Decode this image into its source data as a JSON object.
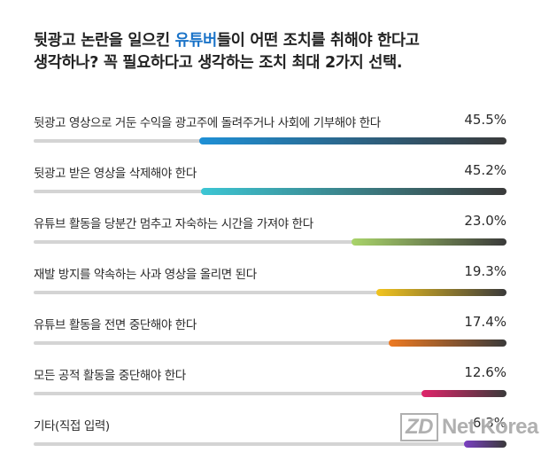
{
  "title": {
    "line1_prefix": "뒷광고 논란을 일으킨 ",
    "line1_highlight": "유튜버",
    "line1_suffix": "들이 어떤 조치를 취해야 한다고",
    "line2": "생각하나?  꼭 필요하다고 생각하는 조치 최대 2가지 선택."
  },
  "watermark": {
    "mark": "ZD",
    "text": "Net Korea"
  },
  "chart_data": {
    "type": "bar",
    "categories": [
      "뒷광고 영상으로 거둔 수익을 광고주에 돌려주거나 사회에 기부해야 한다",
      "뒷광고 받은 영상을 삭제해야 한다",
      "유튜브 활동을 당분간 멈추고 자숙하는 시간을 가져야 한다",
      "재발 방지를 약속하는 사과 영상을 올리면 된다",
      "유튜브 활동을 전면 중단해야 한다",
      "모든 공적 활동을 중단해야 한다",
      "기타(직접 입력)"
    ],
    "values": [
      45.5,
      45.2,
      23.0,
      19.3,
      17.4,
      12.6,
      6.3
    ],
    "value_labels": [
      "45.5%",
      "45.2%",
      "23.0%",
      "19.3%",
      "17.4%",
      "12.6%",
      "6.3%"
    ],
    "xlim": [
      0,
      70
    ],
    "colors": [
      [
        "#1e90d6",
        "#3a3a3a"
      ],
      [
        "#3cc6d4",
        "#3a3a3a"
      ],
      [
        "#a9d46a",
        "#3a3a3a"
      ],
      [
        "#f2c41e",
        "#3a3a3a"
      ],
      [
        "#ee7a22",
        "#3a3a3a"
      ],
      [
        "#e0246a",
        "#3a3a3a"
      ],
      [
        "#7a3fc2",
        "#3a3a3a"
      ]
    ]
  }
}
